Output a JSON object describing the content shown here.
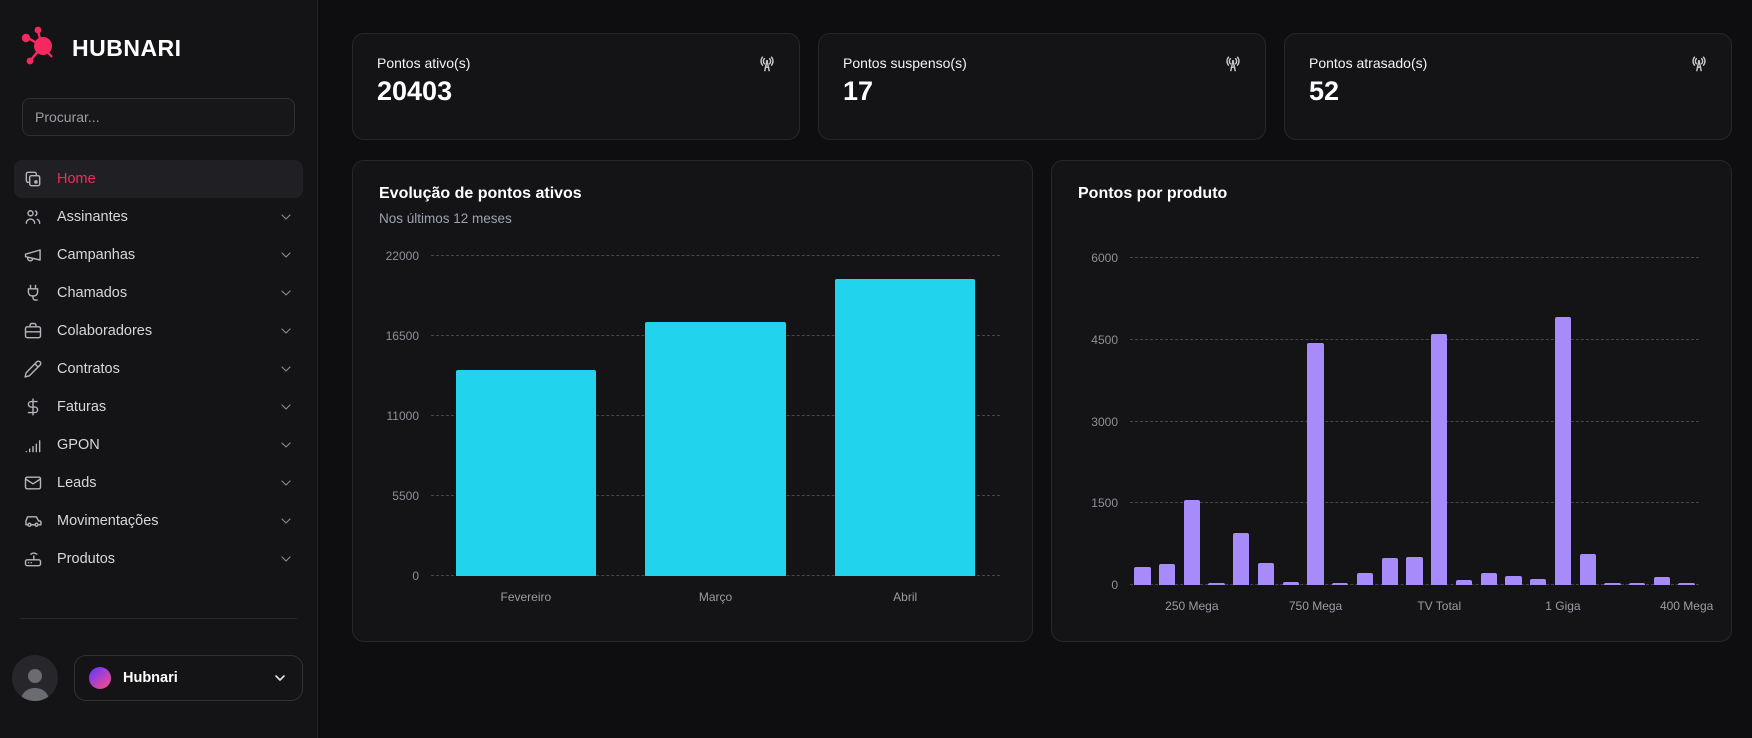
{
  "sidebar": {
    "logo_text": "HUBNARI",
    "search": {
      "placeholder": "Procurar..."
    },
    "items": [
      {
        "label": "Home",
        "icon": "windows-icon",
        "active": true,
        "expandable": false
      },
      {
        "label": "Assinantes",
        "icon": "users-icon",
        "active": false,
        "expandable": true
      },
      {
        "label": "Campanhas",
        "icon": "megaphone-icon",
        "active": false,
        "expandable": true
      },
      {
        "label": "Chamados",
        "icon": "plug-icon",
        "active": false,
        "expandable": true
      },
      {
        "label": "Colaboradores",
        "icon": "briefcase-icon",
        "active": false,
        "expandable": true
      },
      {
        "label": "Contratos",
        "icon": "pencil-icon",
        "active": false,
        "expandable": true
      },
      {
        "label": "Faturas",
        "icon": "dollar-icon",
        "active": false,
        "expandable": true
      },
      {
        "label": "GPON",
        "icon": "signal-icon",
        "active": false,
        "expandable": true
      },
      {
        "label": "Leads",
        "icon": "mail-icon",
        "active": false,
        "expandable": true
      },
      {
        "label": "Movimentações",
        "icon": "car-icon",
        "active": false,
        "expandable": true
      },
      {
        "label": "Produtos",
        "icon": "router-icon",
        "active": false,
        "expandable": true
      }
    ],
    "account": {
      "name": "Hubnari"
    }
  },
  "stats": [
    {
      "label": "Pontos ativo(s)",
      "value": "20403",
      "icon": "antenna-icon"
    },
    {
      "label": "Pontos suspenso(s)",
      "value": "17",
      "icon": "antenna-icon"
    },
    {
      "label": "Pontos atrasado(s)",
      "value": "52",
      "icon": "antenna-icon"
    }
  ],
  "colors": {
    "accent": "#f5295f",
    "cyan_bar": "#22d3ee",
    "purple_bar": "#a78bfa",
    "gradient_dot": [
      "#7c3aed",
      "#ec4899"
    ]
  },
  "chart_data": [
    {
      "type": "bar",
      "title": "Evolução de pontos ativos",
      "subtitle": "Nos últimos 12 meses",
      "categories": [
        "Fevereiro",
        "Março",
        "Abril"
      ],
      "values": [
        14200,
        17500,
        20403
      ],
      "bar_color": "#22d3ee",
      "yticks": [
        0,
        5500,
        11000,
        16500,
        22000
      ],
      "ylim": [
        0,
        22000
      ],
      "grid": "dashed-horizontal",
      "legend": "none",
      "bar_width_frac": 0.74
    },
    {
      "type": "bar",
      "title": "Pontos por produto",
      "subtitle": "",
      "categories": [
        "",
        "",
        "250 Mega",
        "",
        "",
        "",
        "",
        "750 Mega",
        "",
        "",
        "",
        "",
        "TV Total",
        "",
        "",
        "",
        "",
        "1 Giga",
        "",
        "",
        "",
        "",
        "400 Mega"
      ],
      "values": [
        330,
        390,
        1560,
        25,
        950,
        400,
        55,
        4450,
        20,
        220,
        500,
        520,
        4610,
        95,
        230,
        170,
        110,
        4920,
        570,
        30,
        15,
        140,
        15
      ],
      "bar_color": "#a78bfa",
      "yticks": [
        0,
        1500,
        3000,
        4500,
        6000
      ],
      "ylim": [
        0,
        6000
      ],
      "grid": "dashed-horizontal",
      "legend": "none",
      "bar_width_frac": 0.66
    }
  ]
}
